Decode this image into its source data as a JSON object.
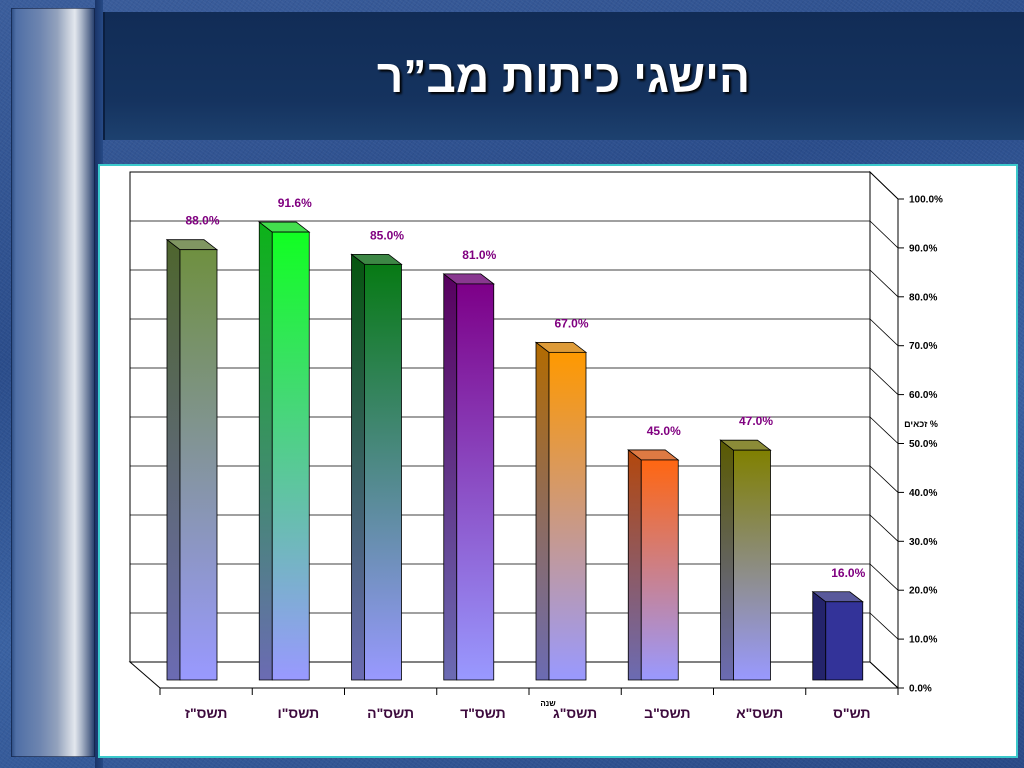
{
  "slide": {
    "title": "הישגי כיתות מב”ר"
  },
  "colors": {
    "background": "#2e508e",
    "header": "#15335f",
    "title_text": "#ffffff",
    "panel_border": "#3cc9cc",
    "panel_background": "#ffffff",
    "data_label": "#800080",
    "category_label": "#3d0a3d",
    "axis_text": "#000000"
  },
  "chart_data": {
    "type": "bar",
    "three_d": true,
    "categories": [
      "תשס\"ז",
      "תשס\"ו",
      "תשס\"ה",
      "תשס\"ד",
      "תשס\"ג",
      "תשס\"ב",
      "תשס\"א",
      "תש\"ס"
    ],
    "values": [
      88.0,
      91.6,
      85.0,
      81.0,
      67.0,
      45.0,
      47.0,
      16.0
    ],
    "data_labels": [
      "88.0%",
      "91.6%",
      "85.0%",
      "81.0%",
      "67.0%",
      "45.0%",
      "47.0%",
      "16.0%"
    ],
    "xlabel": "שנה",
    "ylabel": "זכאים %",
    "ylim": [
      0,
      100
    ],
    "yticks": [
      "0.0%",
      "10.0%",
      "20.0%",
      "30.0%",
      "40.0%",
      "50.0%",
      "60.0%",
      "70.0%",
      "80.0%",
      "90.0%",
      "100.0%"
    ],
    "y_axis_position": "right",
    "grid": true,
    "legend": "none",
    "bar_colors": [
      {
        "top": "#6f9040",
        "bottom": "#9999ff"
      },
      {
        "top": "#11ff22",
        "bottom": "#9999ff"
      },
      {
        "top": "#077a14",
        "bottom": "#9999ff"
      },
      {
        "top": "#7d0088",
        "bottom": "#9999ff"
      },
      {
        "top": "#ff9900",
        "bottom": "#9999ff"
      },
      {
        "top": "#ff6611",
        "bottom": "#9999ff"
      },
      {
        "top": "#808000",
        "bottom": "#9999ff"
      },
      {
        "top": "#333399",
        "bottom": "#333399"
      }
    ]
  }
}
